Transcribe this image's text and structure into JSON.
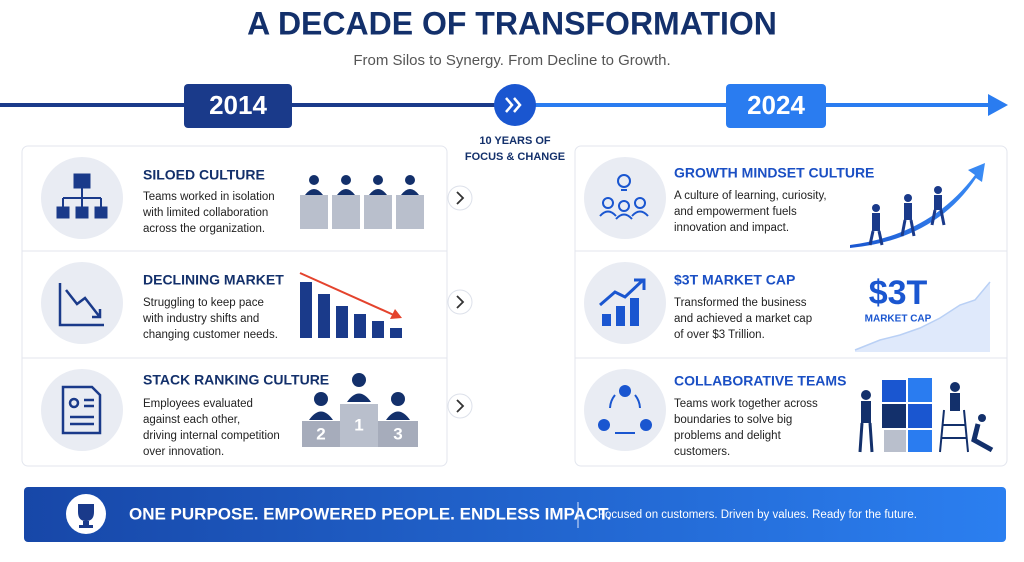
{
  "header": {
    "title": "A DECADE OF TRANSFORMATION",
    "subtitle": "From Silos to Synergy. From Decline to Growth."
  },
  "timeline": {
    "start": "2014",
    "end": "2024",
    "middle": [
      "10 YEARS OF",
      "FOCUS & CHANGE"
    ]
  },
  "before": [
    {
      "title": "SILOED CULTURE",
      "lines": [
        "Teams worked in isolation",
        "with limited collaboration",
        "across the organization."
      ]
    },
    {
      "title": "DECLINING MARKET",
      "lines": [
        "Struggling to keep pace",
        "with industry shifts and",
        "changing customer needs."
      ]
    },
    {
      "title": "STACK RANKING CULTURE",
      "lines": [
        "Employees evaluated",
        "against each other,",
        "driving internal competition",
        "over innovation."
      ],
      "podium": [
        "2",
        "1",
        "3"
      ]
    }
  ],
  "after": [
    {
      "title": "GROWTH MINDSET CULTURE",
      "lines": [
        "A culture of learning, curiosity,",
        "and empowerment fuels",
        "innovation and impact."
      ]
    },
    {
      "title": "$3T MARKET CAP",
      "lines": [
        "Transformed the business",
        "and achieved a market cap",
        "of over $3 Trillion."
      ],
      "figure": "$3T",
      "figure_label": "MARKET CAP"
    },
    {
      "title": "COLLABORATIVE TEAMS",
      "lines": [
        "Teams work together across",
        "boundaries to solve big",
        "problems and delight",
        "customers."
      ]
    }
  ],
  "footer": {
    "slogan": "ONE PURPOSE. EMPOWERED PEOPLE. ENDLESS IMPACT.",
    "tagline": "Focused on customers. Driven by values. Ready for the future."
  }
}
